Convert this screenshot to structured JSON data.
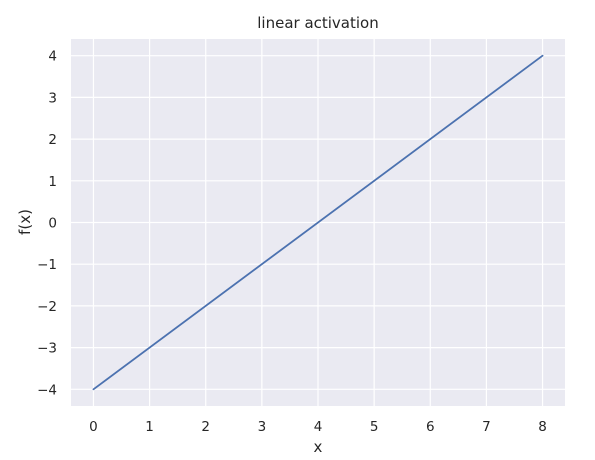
{
  "chart_data": {
    "type": "line",
    "title": "linear activation",
    "xlabel": "x",
    "ylabel": "f(x)",
    "xlim": [
      -0.4,
      8.4
    ],
    "ylim": [
      -4.4,
      4.4
    ],
    "xticks": [
      0,
      1,
      2,
      3,
      4,
      5,
      6,
      7,
      8
    ],
    "yticks": [
      -4,
      -3,
      -2,
      -1,
      0,
      1,
      2,
      3,
      4
    ],
    "xtick_labels": [
      "0",
      "1",
      "2",
      "3",
      "4",
      "5",
      "6",
      "7",
      "8"
    ],
    "ytick_labels": [
      "−4",
      "−3",
      "−2",
      "−1",
      "0",
      "1",
      "2",
      "3",
      "4"
    ],
    "grid": true,
    "series": [
      {
        "color": "#4c72b0",
        "x": [
          0,
          8
        ],
        "y": [
          -4,
          4
        ]
      }
    ],
    "colors": {
      "plot_background": "#eaeaf2",
      "grid": "#ffffff",
      "line": "#4c72b0",
      "text": "#262626"
    }
  }
}
